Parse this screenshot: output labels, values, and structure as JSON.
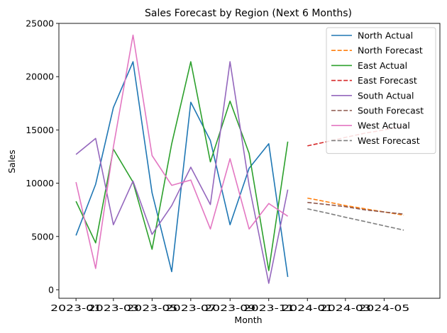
{
  "chart_data": {
    "type": "line",
    "title": "Sales Forecast by Region (Next 6 Months)",
    "xlabel": "Month",
    "ylabel": "Sales",
    "ylim": [
      -800,
      25000
    ],
    "yticks": [
      0,
      5000,
      10000,
      15000,
      20000,
      25000
    ],
    "xlim": [
      "2022-12-05",
      "2024-07-28"
    ],
    "xticks": [
      "2023-01",
      "2023-03",
      "2023-05",
      "2023-07",
      "2023-09",
      "2023-11",
      "2024-01",
      "2024-03",
      "2024-05"
    ],
    "grid": false,
    "legend_position": "top-right",
    "series": [
      {
        "name": "North Actual",
        "color": "#1f77b4",
        "style": "solid",
        "x": [
          "2023-01-01",
          "2023-02-01",
          "2023-03-01",
          "2023-04-01",
          "2023-05-01",
          "2023-06-01",
          "2023-07-01",
          "2023-08-01",
          "2023-09-01",
          "2023-10-01",
          "2023-11-01",
          "2023-12-01"
        ],
        "y": [
          5100,
          9900,
          17100,
          21400,
          9100,
          1700,
          17600,
          14000,
          6100,
          11400,
          13700,
          1200
        ]
      },
      {
        "name": "North Forecast",
        "color": "#ff7f0e",
        "style": "dashed",
        "x": [
          "2024-01-01",
          "2024-02-01",
          "2024-03-01",
          "2024-04-01",
          "2024-05-01",
          "2024-06-01"
        ],
        "y": [
          8600,
          8250,
          7900,
          7600,
          7300,
          7000
        ]
      },
      {
        "name": "East Actual",
        "color": "#2ca02c",
        "style": "solid",
        "x": [
          "2023-01-01",
          "2023-02-01",
          "2023-03-01",
          "2023-04-01",
          "2023-05-01",
          "2023-06-01",
          "2023-07-01",
          "2023-08-01",
          "2023-09-01",
          "2023-10-01",
          "2023-11-01",
          "2023-12-01"
        ],
        "y": [
          8300,
          4400,
          13200,
          10100,
          3800,
          13700,
          21400,
          12000,
          17700,
          12800,
          1800,
          13900
        ]
      },
      {
        "name": "East Forecast",
        "color": "#d62728",
        "style": "dashed",
        "x": [
          "2024-01-01",
          "2024-02-01",
          "2024-03-01",
          "2024-04-01",
          "2024-05-01",
          "2024-06-01"
        ],
        "y": [
          13500,
          13900,
          14300,
          14700,
          15000,
          15400
        ]
      },
      {
        "name": "South Actual",
        "color": "#9467bd",
        "style": "solid",
        "x": [
          "2023-01-01",
          "2023-02-01",
          "2023-03-01",
          "2023-04-01",
          "2023-05-01",
          "2023-06-01",
          "2023-07-01",
          "2023-08-01",
          "2023-09-01",
          "2023-10-01",
          "2023-11-01",
          "2023-12-01"
        ],
        "y": [
          12700,
          14200,
          6100,
          10200,
          5200,
          7900,
          11500,
          8000,
          21400,
          9800,
          600,
          9400
        ]
      },
      {
        "name": "South Forecast",
        "color": "#8c564b",
        "style": "dashed",
        "x": [
          "2024-01-01",
          "2024-02-01",
          "2024-03-01",
          "2024-04-01",
          "2024-05-01",
          "2024-06-01"
        ],
        "y": [
          8200,
          8000,
          7800,
          7500,
          7300,
          7100
        ]
      },
      {
        "name": "West Actual",
        "color": "#e377c2",
        "style": "solid",
        "x": [
          "2023-01-01",
          "2023-02-01",
          "2023-03-01",
          "2023-04-01",
          "2023-05-01",
          "2023-06-01",
          "2023-07-01",
          "2023-08-01",
          "2023-09-01",
          "2023-10-01",
          "2023-11-01",
          "2023-12-01"
        ],
        "y": [
          10100,
          2000,
          13400,
          23900,
          12600,
          9800,
          10300,
          5700,
          12300,
          5700,
          8100,
          6900
        ]
      },
      {
        "name": "West Forecast",
        "color": "#7f7f7f",
        "style": "dashed",
        "x": [
          "2024-01-01",
          "2024-02-01",
          "2024-03-01",
          "2024-04-01",
          "2024-05-01",
          "2024-06-01"
        ],
        "y": [
          7600,
          7200,
          6800,
          6400,
          6000,
          5600
        ]
      }
    ]
  }
}
